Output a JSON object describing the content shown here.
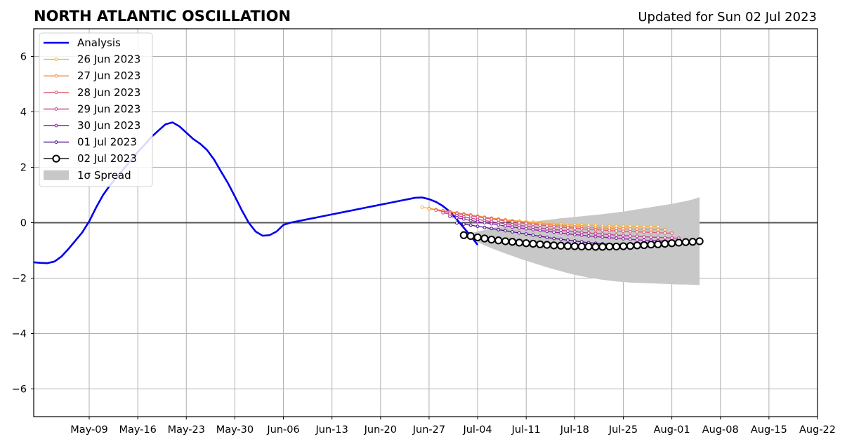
{
  "title": "NORTH ATLANTIC OSCILLATION",
  "subtitle": "Updated for Sun 02 Jul 2023",
  "chart_data": {
    "type": "line",
    "title": "NORTH ATLANTIC OSCILLATION",
    "xlabel": "",
    "ylabel": "",
    "xlim": [
      "2023-05-01",
      "2023-08-22"
    ],
    "ylim": [
      -7,
      7
    ],
    "grid": true,
    "legend_position": "top-left",
    "x_ticks": [
      "May-09",
      "May-16",
      "May-23",
      "May-30",
      "Jun-06",
      "Jun-13",
      "Jun-20",
      "Jun-27",
      "Jul-04",
      "Jul-11",
      "Jul-18",
      "Jul-25",
      "Aug-01",
      "Aug-08",
      "Aug-15",
      "Aug-22"
    ],
    "y_ticks": [
      -6,
      -4,
      -2,
      0,
      2,
      4,
      6
    ],
    "y_tick_labels": [
      "−6",
      "−4",
      "−2",
      "0",
      "2",
      "4",
      "6"
    ],
    "zero_line": 0,
    "analysis": {
      "name": "Analysis",
      "color": "#0000ee",
      "start": "2023-05-01",
      "values": [
        -1.43,
        -1.45,
        -1.46,
        -1.4,
        -1.22,
        -0.95,
        -0.65,
        -0.35,
        0.05,
        0.55,
        1.0,
        1.35,
        1.65,
        1.95,
        2.25,
        2.55,
        2.82,
        3.1,
        3.33,
        3.55,
        3.62,
        3.48,
        3.25,
        3.02,
        2.85,
        2.62,
        2.28,
        1.85,
        1.43,
        0.95,
        0.45,
        0.0,
        -0.32,
        -0.47,
        -0.45,
        -0.32,
        -0.08,
        0.0,
        0.05,
        0.1,
        0.15,
        0.2,
        0.25,
        0.3,
        0.35,
        0.4,
        0.45,
        0.5,
        0.55,
        0.6,
        0.65,
        0.7,
        0.75,
        0.8,
        0.85,
        0.9,
        0.91,
        0.85,
        0.75,
        0.6,
        0.4,
        0.12,
        -0.18,
        -0.48,
        -0.8
      ]
    },
    "forecasts": [
      {
        "name": "26 Jun 2023",
        "color": "#f9b233",
        "start": "2023-06-26",
        "values": [
          0.56,
          0.52,
          0.48,
          0.44,
          0.4,
          0.36,
          0.32,
          0.28,
          0.24,
          0.2,
          0.17,
          0.14,
          0.11,
          0.08,
          0.06,
          0.04,
          0.02,
          0.0,
          -0.02,
          -0.04,
          -0.05,
          -0.06,
          -0.07,
          -0.08,
          -0.09,
          -0.1,
          -0.11,
          -0.12,
          -0.12,
          -0.13,
          -0.13,
          -0.13,
          -0.14,
          -0.14,
          -0.14
        ]
      },
      {
        "name": "27 Jun 2023",
        "color": "#f28c3c",
        "start": "2023-06-27",
        "values": [
          0.5,
          0.47,
          0.43,
          0.4,
          0.36,
          0.32,
          0.28,
          0.24,
          0.2,
          0.16,
          0.13,
          0.1,
          0.07,
          0.04,
          0.01,
          -0.02,
          -0.04,
          -0.06,
          -0.08,
          -0.1,
          -0.12,
          -0.14,
          -0.15,
          -0.17,
          -0.18,
          -0.19,
          -0.2,
          -0.21,
          -0.22,
          -0.23,
          -0.24,
          -0.24,
          -0.25,
          -0.25,
          -0.25
        ]
      },
      {
        "name": "28 Jun 2023",
        "color": "#e05a6e",
        "start": "2023-06-28",
        "values": [
          0.45,
          0.41,
          0.37,
          0.33,
          0.29,
          0.25,
          0.21,
          0.17,
          0.13,
          0.1,
          0.06,
          0.03,
          0.0,
          -0.03,
          -0.06,
          -0.09,
          -0.11,
          -0.14,
          -0.16,
          -0.18,
          -0.2,
          -0.22,
          -0.24,
          -0.25,
          -0.27,
          -0.28,
          -0.3,
          -0.31,
          -0.32,
          -0.33,
          -0.34,
          -0.35,
          -0.36,
          -0.37,
          -0.38
        ]
      },
      {
        "name": "29 Jun 2023",
        "color": "#c2398f",
        "start": "2023-06-29",
        "values": [
          0.36,
          0.31,
          0.26,
          0.21,
          0.16,
          0.12,
          0.08,
          0.04,
          0.0,
          -0.04,
          -0.07,
          -0.1,
          -0.13,
          -0.16,
          -0.19,
          -0.22,
          -0.25,
          -0.27,
          -0.3,
          -0.32,
          -0.35,
          -0.37,
          -0.39,
          -0.41,
          -0.43,
          -0.45,
          -0.46,
          -0.48,
          -0.49,
          -0.51,
          -0.52,
          -0.53,
          -0.54,
          -0.55,
          -0.56
        ]
      },
      {
        "name": "30 Jun 2023",
        "color": "#8e1ea8",
        "start": "2023-06-30",
        "values": [
          0.23,
          0.18,
          0.13,
          0.08,
          0.04,
          0.0,
          -0.04,
          -0.08,
          -0.12,
          -0.16,
          -0.19,
          -0.22,
          -0.25,
          -0.28,
          -0.31,
          -0.34,
          -0.37,
          -0.4,
          -0.43,
          -0.45,
          -0.48,
          -0.5,
          -0.52,
          -0.54,
          -0.56,
          -0.58,
          -0.6,
          -0.62,
          -0.63,
          -0.64,
          -0.65,
          -0.66,
          -0.66,
          -0.67,
          -0.67
        ]
      },
      {
        "name": "01 Jul 2023",
        "color": "#4b0d8c",
        "start": "2023-07-01",
        "values": [
          -0.01,
          -0.05,
          -0.09,
          -0.13,
          -0.17,
          -0.21,
          -0.25,
          -0.29,
          -0.33,
          -0.37,
          -0.41,
          -0.45,
          -0.49,
          -0.53,
          -0.57,
          -0.6,
          -0.63,
          -0.66,
          -0.69,
          -0.72,
          -0.74,
          -0.76,
          -0.78,
          -0.79,
          -0.8,
          -0.8,
          -0.8,
          -0.79,
          -0.78,
          -0.77,
          -0.75,
          -0.73,
          -0.71,
          -0.69,
          -0.67
        ]
      },
      {
        "name": "02 Jul 2023",
        "color": "#000000",
        "start": "2023-07-02",
        "values": [
          -0.45,
          -0.48,
          -0.53,
          -0.57,
          -0.61,
          -0.64,
          -0.67,
          -0.69,
          -0.72,
          -0.74,
          -0.76,
          -0.78,
          -0.8,
          -0.82,
          -0.83,
          -0.84,
          -0.85,
          -0.86,
          -0.86,
          -0.87,
          -0.87,
          -0.86,
          -0.86,
          -0.85,
          -0.84,
          -0.82,
          -0.81,
          -0.79,
          -0.78,
          -0.76,
          -0.74,
          -0.72,
          -0.7,
          -0.69,
          -0.67
        ]
      }
    ],
    "spread": {
      "name": "1σ Spread",
      "color": "#c8c8c8",
      "start": "2023-07-02",
      "upper": [
        -0.45,
        -0.38,
        -0.32,
        -0.26,
        -0.2,
        -0.15,
        -0.1,
        -0.06,
        -0.02,
        0.01,
        0.04,
        0.07,
        0.1,
        0.13,
        0.16,
        0.18,
        0.21,
        0.23,
        0.26,
        0.28,
        0.31,
        0.34,
        0.37,
        0.4,
        0.44,
        0.48,
        0.52,
        0.56,
        0.6,
        0.64,
        0.68,
        0.73,
        0.78,
        0.84,
        0.92
      ],
      "lower": [
        -0.45,
        -0.58,
        -0.7,
        -0.82,
        -0.92,
        -1.02,
        -1.11,
        -1.2,
        -1.29,
        -1.37,
        -1.45,
        -1.53,
        -1.61,
        -1.68,
        -1.75,
        -1.82,
        -1.88,
        -1.93,
        -1.98,
        -2.02,
        -2.06,
        -2.09,
        -2.12,
        -2.14,
        -2.16,
        -2.17,
        -2.18,
        -2.19,
        -2.2,
        -2.21,
        -2.22,
        -2.23,
        -2.23,
        -2.24,
        -2.25
      ]
    },
    "legend": [
      {
        "label": "Analysis",
        "color": "#0000ee",
        "style": "thick-line"
      },
      {
        "label": "26 Jun 2023",
        "color": "#f9b233",
        "style": "line-dots"
      },
      {
        "label": "27 Jun 2023",
        "color": "#f28c3c",
        "style": "line-dots"
      },
      {
        "label": "28 Jun 2023",
        "color": "#e05a6e",
        "style": "line-dots"
      },
      {
        "label": "29 Jun 2023",
        "color": "#c2398f",
        "style": "line-dots"
      },
      {
        "label": "30 Jun 2023",
        "color": "#8e1ea8",
        "style": "line-dots"
      },
      {
        "label": "01 Jul 2023",
        "color": "#4b0d8c",
        "style": "line-dots"
      },
      {
        "label": "02 Jul 2023",
        "color": "#000000",
        "style": "line-circles"
      },
      {
        "label": "1σ Spread",
        "color": "#c8c8c8",
        "style": "patch"
      }
    ]
  }
}
